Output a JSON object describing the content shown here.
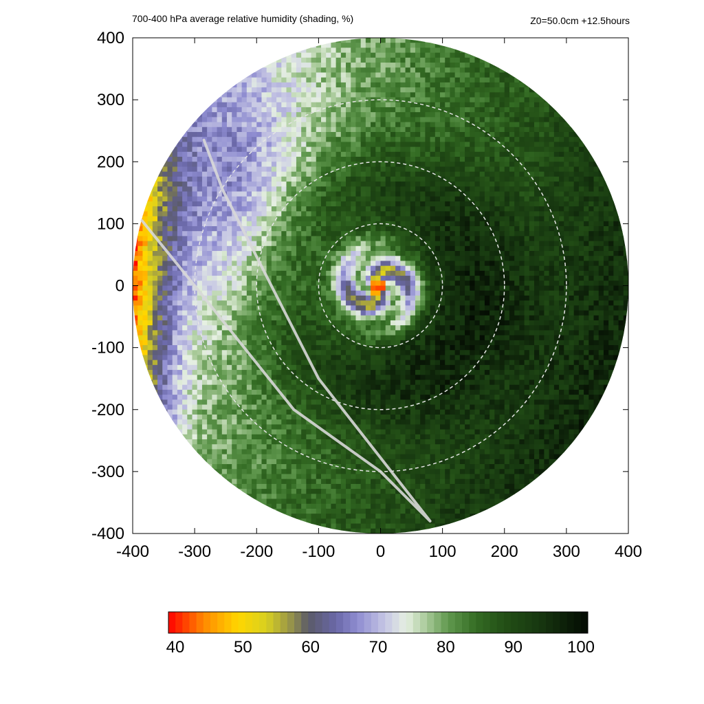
{
  "header": {
    "title": "700-400 hPa average relative humidity (shading, %)",
    "run_info": "Z0=50.0cm  +12.5hours"
  },
  "chart_data": {
    "type": "heatmap",
    "title": "700-400 hPa average relative humidity (shading, %)",
    "annotation": "Z0=50.0cm  +12.5hours",
    "xlabel": "",
    "ylabel": "",
    "xlim": [
      -400,
      400
    ],
    "ylim": [
      -400,
      400
    ],
    "x_ticks": [
      -400,
      -300,
      -200,
      -100,
      0,
      100,
      200,
      300,
      400
    ],
    "y_ticks": [
      -400,
      -300,
      -200,
      -100,
      0,
      100,
      200,
      300,
      400
    ],
    "x_tick_labels": [
      "-400",
      "-300",
      "-200",
      "-100",
      "0",
      "100",
      "200",
      "300",
      "400"
    ],
    "y_tick_labels": [
      "400",
      "300",
      "200",
      "100",
      "0",
      "-100",
      "-200",
      "-300",
      "-400"
    ],
    "domain_radius": 400,
    "range_rings": [
      100,
      200,
      300,
      400
    ],
    "range_ring_center": [
      0,
      0
    ],
    "storm_center": [
      -5,
      -3
    ],
    "eye_rh": 45,
    "flight_track": [
      [
        -385,
        105
      ],
      [
        -300,
        0
      ],
      [
        -140,
        -200
      ],
      [
        0,
        -300
      ],
      [
        80,
        -380
      ],
      [
        -100,
        -150
      ],
      [
        -255,
        155
      ],
      [
        -285,
        235
      ]
    ],
    "colorbar": {
      "min": 40,
      "max": 100,
      "tick_values": [
        40,
        50,
        60,
        70,
        80,
        90,
        100
      ],
      "tick_labels": [
        "40",
        "50",
        "60",
        "70",
        "80",
        "90",
        "100"
      ],
      "stops": [
        {
          "value": 40,
          "color": "#ff0000"
        },
        {
          "value": 45,
          "color": "#ff8800"
        },
        {
          "value": 50,
          "color": "#ffd700"
        },
        {
          "value": 54,
          "color": "#d8d020"
        },
        {
          "value": 58,
          "color": "#8c8a50"
        },
        {
          "value": 60,
          "color": "#5a5a68"
        },
        {
          "value": 64,
          "color": "#6a68a8"
        },
        {
          "value": 67,
          "color": "#8e8cd0"
        },
        {
          "value": 71,
          "color": "#c6c6e4"
        },
        {
          "value": 74,
          "color": "#e6f0e2"
        },
        {
          "value": 77,
          "color": "#a6c896"
        },
        {
          "value": 80,
          "color": "#60984e"
        },
        {
          "value": 84,
          "color": "#346c24"
        },
        {
          "value": 88,
          "color": "#234f16"
        },
        {
          "value": 93,
          "color": "#173810"
        },
        {
          "value": 100,
          "color": "#030a02"
        }
      ]
    },
    "grid": false,
    "legend": "colorbar-bottom"
  }
}
